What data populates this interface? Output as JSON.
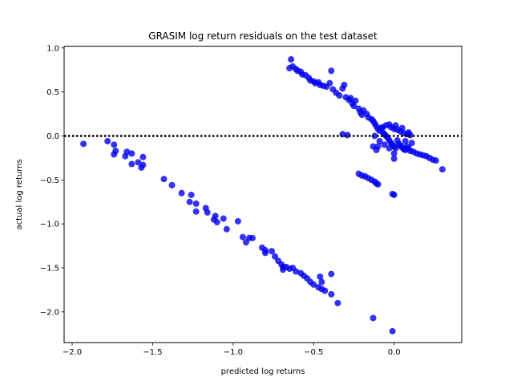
{
  "chart_data": {
    "type": "scatter",
    "title": "GRASIM log return residuals on the test dataset",
    "xlabel": "predicted log returns",
    "ylabel": "actual log returns",
    "xlim": [
      -2.05,
      0.42
    ],
    "ylim": [
      -2.35,
      1.02
    ],
    "xticks": [
      -2.0,
      -1.5,
      -1.0,
      -0.5,
      0.0
    ],
    "xtick_labels": [
      "−2.0",
      "−1.5",
      "−1.0",
      "−0.5",
      "0.0"
    ],
    "yticks": [
      -2.0,
      -1.5,
      -1.0,
      -0.5,
      0.0,
      0.5,
      1.0
    ],
    "ytick_labels": [
      "−2.0",
      "−1.5",
      "−1.0",
      "−0.5",
      "0.0",
      "0.5",
      "1.0"
    ],
    "grid": false,
    "reference_line": {
      "y": 0,
      "style": "dotted",
      "color": "#000000"
    },
    "series": [
      {
        "color": "#0000ee",
        "points": [
          [
            -1.93,
            -0.09
          ],
          [
            -1.78,
            -0.06
          ],
          [
            -1.74,
            -0.1
          ],
          [
            -1.73,
            -0.17
          ],
          [
            -1.74,
            -0.21
          ],
          [
            -1.67,
            -0.23
          ],
          [
            -1.66,
            -0.18
          ],
          [
            -1.63,
            -0.2
          ],
          [
            -1.63,
            -0.32
          ],
          [
            -1.59,
            -0.3
          ],
          [
            -1.56,
            -0.24
          ],
          [
            -1.56,
            -0.33
          ],
          [
            -1.57,
            -0.36
          ],
          [
            -1.43,
            -0.49
          ],
          [
            -1.38,
            -0.56
          ],
          [
            -1.32,
            -0.65
          ],
          [
            -1.26,
            -0.67
          ],
          [
            -1.27,
            -0.75
          ],
          [
            -1.23,
            -0.77
          ],
          [
            -1.23,
            -0.86
          ],
          [
            -1.17,
            -0.82
          ],
          [
            -1.16,
            -0.87
          ],
          [
            -1.11,
            -0.91
          ],
          [
            -1.12,
            -0.95
          ],
          [
            -1.1,
            -0.98
          ],
          [
            -1.06,
            -0.94
          ],
          [
            -1.04,
            -1.06
          ],
          [
            -0.97,
            -0.97
          ],
          [
            -0.94,
            -1.15
          ],
          [
            -0.92,
            -1.21
          ],
          [
            -0.9,
            -1.16
          ],
          [
            -0.88,
            -1.16
          ],
          [
            -0.82,
            -1.27
          ],
          [
            -0.8,
            -1.3
          ],
          [
            -0.8,
            -1.33
          ],
          [
            -0.76,
            -1.31
          ],
          [
            -0.74,
            -1.37
          ],
          [
            -0.72,
            -1.42
          ],
          [
            -0.7,
            -1.46
          ],
          [
            -0.69,
            -1.49
          ],
          [
            -0.69,
            -1.52
          ],
          [
            -0.67,
            -1.49
          ],
          [
            -0.65,
            -1.51
          ],
          [
            -0.63,
            -1.5
          ],
          [
            -0.61,
            -1.54
          ],
          [
            -0.58,
            -1.56
          ],
          [
            -0.56,
            -1.59
          ],
          [
            -0.54,
            -1.62
          ],
          [
            -0.52,
            -1.66
          ],
          [
            -0.5,
            -1.69
          ],
          [
            -0.47,
            -1.72
          ],
          [
            -0.45,
            -1.74
          ],
          [
            -0.43,
            -1.76
          ],
          [
            -0.46,
            -1.6
          ],
          [
            -0.45,
            -1.66
          ],
          [
            -0.39,
            -1.57
          ],
          [
            -0.39,
            -1.8
          ],
          [
            -0.35,
            -1.9
          ],
          [
            -0.13,
            -2.07
          ],
          [
            -0.01,
            -2.22
          ],
          [
            -0.64,
            0.87
          ],
          [
            -0.65,
            0.77
          ],
          [
            -0.63,
            0.79
          ],
          [
            -0.61,
            0.76
          ],
          [
            -0.6,
            0.74
          ],
          [
            -0.58,
            0.73
          ],
          [
            -0.57,
            0.7
          ],
          [
            -0.55,
            0.69
          ],
          [
            -0.53,
            0.66
          ],
          [
            -0.52,
            0.63
          ],
          [
            -0.5,
            0.62
          ],
          [
            -0.49,
            0.6
          ],
          [
            -0.47,
            0.61
          ],
          [
            -0.46,
            0.58
          ],
          [
            -0.44,
            0.57
          ],
          [
            -0.42,
            0.56
          ],
          [
            -0.4,
            0.6
          ],
          [
            -0.39,
            0.74
          ],
          [
            -0.38,
            0.53
          ],
          [
            -0.36,
            0.49
          ],
          [
            -0.34,
            0.46
          ],
          [
            -0.32,
            0.54
          ],
          [
            -0.31,
            0.58
          ],
          [
            -0.3,
            0.44
          ],
          [
            -0.28,
            0.41
          ],
          [
            -0.27,
            0.43
          ],
          [
            -0.26,
            0.37
          ],
          [
            -0.25,
            0.34
          ],
          [
            -0.24,
            0.4
          ],
          [
            -0.22,
            0.31
          ],
          [
            -0.21,
            0.27
          ],
          [
            -0.2,
            0.24
          ],
          [
            -0.19,
            0.29
          ],
          [
            -0.17,
            0.25
          ],
          [
            -0.16,
            0.21
          ],
          [
            -0.14,
            0.19
          ],
          [
            -0.13,
            0.17
          ],
          [
            -0.12,
            0.14
          ],
          [
            -0.11,
            0.11
          ],
          [
            -0.1,
            0.08
          ],
          [
            -0.09,
            0.06
          ],
          [
            -0.08,
            0.09
          ],
          [
            -0.07,
            0.04
          ],
          [
            -0.06,
            0.02
          ],
          [
            -0.05,
            0.0
          ],
          [
            -0.04,
            -0.02
          ],
          [
            -0.03,
            -0.05
          ],
          [
            -0.02,
            -0.08
          ],
          [
            -0.01,
            -0.1
          ],
          [
            0.0,
            -0.12
          ],
          [
            0.01,
            -0.14
          ],
          [
            0.02,
            -0.05
          ],
          [
            0.03,
            -0.09
          ],
          [
            0.04,
            -0.11
          ],
          [
            0.05,
            -0.13
          ],
          [
            0.06,
            -0.15
          ],
          [
            0.07,
            -0.16
          ],
          [
            0.08,
            -0.12
          ],
          [
            0.09,
            -0.14
          ],
          [
            0.1,
            -0.17
          ],
          [
            0.12,
            -0.18
          ],
          [
            0.14,
            -0.2
          ],
          [
            0.16,
            -0.21
          ],
          [
            0.18,
            -0.22
          ],
          [
            0.2,
            -0.23
          ],
          [
            0.22,
            -0.25
          ],
          [
            0.24,
            -0.27
          ],
          [
            0.26,
            -0.28
          ],
          [
            0.3,
            -0.38
          ],
          [
            -0.05,
            0.12
          ],
          [
            -0.02,
            0.1
          ],
          [
            0.0,
            0.08
          ],
          [
            0.02,
            0.07
          ],
          [
            0.04,
            0.05
          ],
          [
            0.06,
            0.03
          ],
          [
            0.08,
            0.02
          ],
          [
            0.1,
            0.01
          ],
          [
            -0.07,
            0.1
          ],
          [
            -0.03,
            0.13
          ],
          [
            0.01,
            0.12
          ],
          [
            0.05,
            0.09
          ],
          [
            0.09,
            0.04
          ],
          [
            -0.09,
            -0.06
          ],
          [
            -0.06,
            -0.1
          ],
          [
            -0.03,
            -0.14
          ],
          [
            0.0,
            -0.2
          ],
          [
            0.0,
            -0.26
          ],
          [
            -0.1,
            -0.12
          ],
          [
            -0.12,
            0.0
          ],
          [
            0.07,
            -0.06
          ],
          [
            0.11,
            -0.08
          ],
          [
            -0.32,
            0.02
          ],
          [
            -0.29,
            0.01
          ],
          [
            -0.13,
            -0.12
          ],
          [
            -0.11,
            -0.16
          ],
          [
            -0.22,
            -0.43
          ],
          [
            -0.2,
            -0.45
          ],
          [
            -0.18,
            -0.46
          ],
          [
            -0.16,
            -0.48
          ],
          [
            -0.14,
            -0.5
          ],
          [
            -0.12,
            -0.52
          ],
          [
            -0.11,
            -0.54
          ],
          [
            -0.1,
            -0.55
          ],
          [
            -0.01,
            -0.66
          ],
          [
            0.0,
            -0.67
          ]
        ]
      }
    ]
  }
}
